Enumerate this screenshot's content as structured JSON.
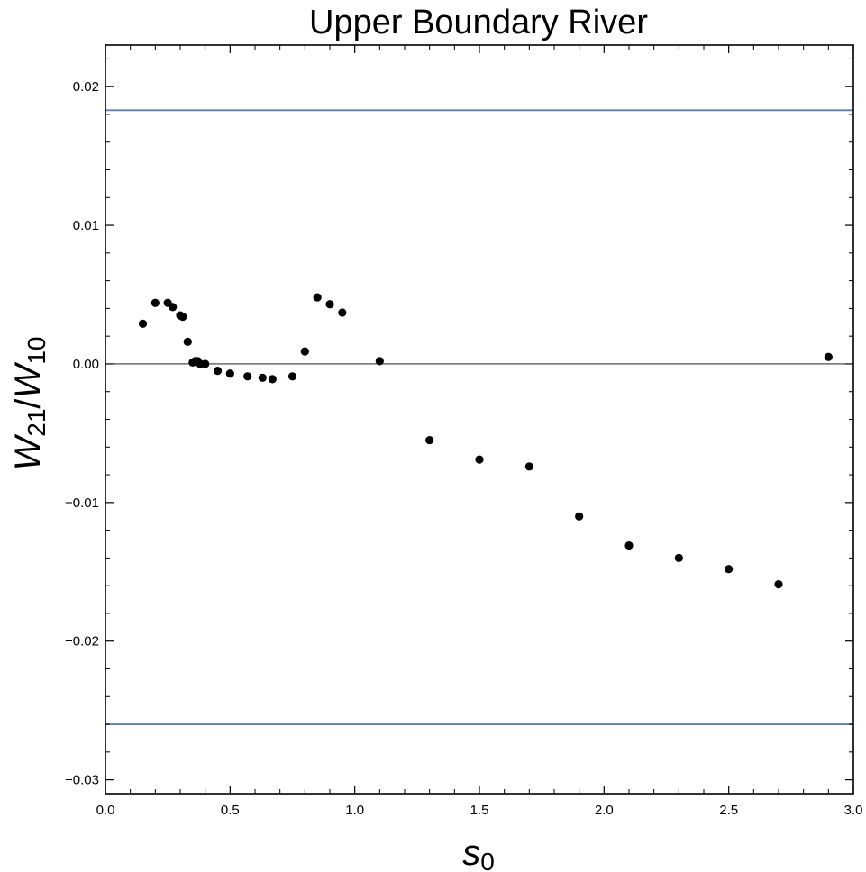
{
  "chart_data": {
    "type": "scatter",
    "title": "Upper Boundary River",
    "xlabel": {
      "base": "s",
      "sub": "0"
    },
    "ylabel": {
      "num_base": "W",
      "num_sub": "21",
      "sep": "/",
      "den_base": "W",
      "den_sub": "10"
    },
    "xlim": [
      0.0,
      3.0
    ],
    "ylim": [
      -0.031,
      0.023
    ],
    "x_ticks": [
      {
        "v": 0.0,
        "label": "0.0"
      },
      {
        "v": 0.5,
        "label": "0.5"
      },
      {
        "v": 1.0,
        "label": "1.0"
      },
      {
        "v": 1.5,
        "label": "1.5"
      },
      {
        "v": 2.0,
        "label": "2.0"
      },
      {
        "v": 2.5,
        "label": "2.5"
      },
      {
        "v": 3.0,
        "label": "3.0"
      }
    ],
    "y_ticks": [
      {
        "v": 0.02,
        "label": "0.02"
      },
      {
        "v": 0.01,
        "label": "0.01"
      },
      {
        "v": 0.0,
        "label": "0.00"
      },
      {
        "v": -0.01,
        "label": "−0.01"
      },
      {
        "v": -0.02,
        "label": "−0.02"
      },
      {
        "v": -0.03,
        "label": "−0.03"
      }
    ],
    "grid": false,
    "zero_line": 0.0,
    "hlines": [
      {
        "y": 0.0183,
        "color": "#5b7fbf"
      },
      {
        "y": -0.026,
        "color": "#5b7fbf"
      }
    ],
    "point_color": "#000000",
    "points": [
      [
        0.15,
        0.0029
      ],
      [
        0.2,
        0.0044
      ],
      [
        0.25,
        0.0044
      ],
      [
        0.27,
        0.0041
      ],
      [
        0.3,
        0.0035
      ],
      [
        0.31,
        0.0034
      ],
      [
        0.33,
        0.0016
      ],
      [
        0.35,
        0.0001
      ],
      [
        0.36,
        0.0002
      ],
      [
        0.37,
        0.0002
      ],
      [
        0.38,
        0.0
      ],
      [
        0.4,
        0.0
      ],
      [
        0.45,
        -0.0005
      ],
      [
        0.5,
        -0.0007
      ],
      [
        0.57,
        -0.0009
      ],
      [
        0.63,
        -0.001
      ],
      [
        0.67,
        -0.0011
      ],
      [
        0.75,
        -0.0009
      ],
      [
        0.8,
        0.0009
      ],
      [
        0.85,
        0.0048
      ],
      [
        0.9,
        0.0043
      ],
      [
        0.95,
        0.0037
      ],
      [
        1.1,
        0.0002
      ],
      [
        1.3,
        -0.0055
      ],
      [
        1.5,
        -0.0069
      ],
      [
        1.7,
        -0.0074
      ],
      [
        1.9,
        -0.011
      ],
      [
        2.1,
        -0.0131
      ],
      [
        2.3,
        -0.014
      ],
      [
        2.5,
        -0.0148
      ],
      [
        2.7,
        -0.0159
      ],
      [
        2.9,
        0.0005
      ]
    ]
  }
}
